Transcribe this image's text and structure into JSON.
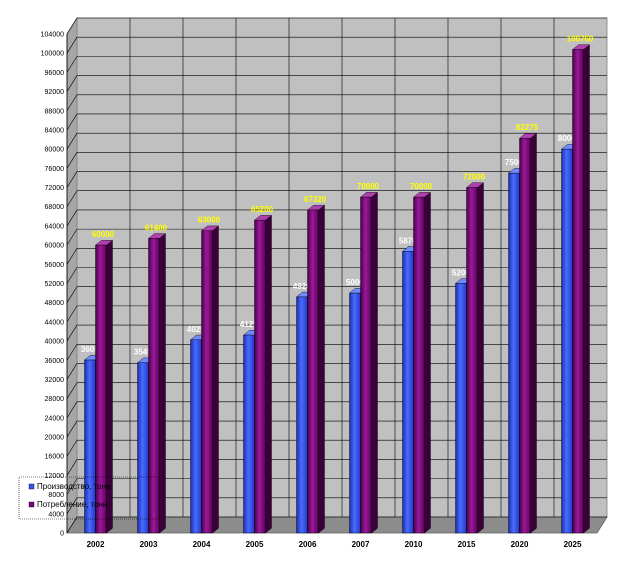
{
  "chart_data": {
    "type": "bar",
    "title": "",
    "xlabel": "",
    "ylabel": "",
    "categories": [
      "2002",
      "2003",
      "2004",
      "2005",
      "2006",
      "2007",
      "2010",
      "2015",
      "2020",
      "2025"
    ],
    "series": [
      {
        "name": "Производство, тонн",
        "color": "#3355ee",
        "values": [
          36050,
          35492,
          40253,
          41250,
          49200,
          50000,
          58700,
          52000,
          75000,
          80000
        ]
      },
      {
        "name": "Потребление, тонн",
        "color": "#800080",
        "values": [
          60000,
          61400,
          63000,
          65200,
          67320,
          70000,
          70000,
          72000,
          82275,
          100760
        ]
      }
    ],
    "ylim": [
      0,
      104000
    ],
    "ytick_step": 4000,
    "ytick_labels": [
      "0",
      "4000",
      "8000",
      "12000",
      "16000",
      "20000",
      "24000",
      "28000",
      "32000",
      "36000",
      "40000",
      "44000",
      "48000",
      "52000",
      "56000",
      "60000",
      "64000",
      "68000",
      "72000",
      "76000",
      "80000",
      "84000",
      "88000",
      "92000",
      "96000",
      "100000",
      "104000"
    ],
    "data_label_colors": [
      "#ffffff",
      "#ffff00"
    ],
    "grid": true,
    "legend_position": "bottom-left",
    "plot_background": "#c0c0c0"
  }
}
